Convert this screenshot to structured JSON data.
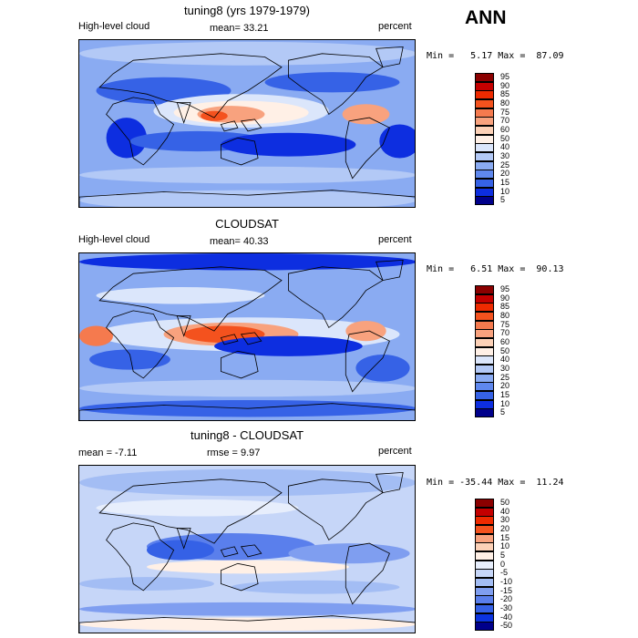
{
  "header": {
    "season": "ANN"
  },
  "panels": [
    {
      "title": "tuning8 (yrs 1979-1979)",
      "left_label": "High-level cloud",
      "mean_label": "mean=  33.21",
      "units": "percent",
      "minmax": "Min =   5.17 Max =  87.09",
      "colorbar_labels": [
        "95",
        "90",
        "85",
        "80",
        "75",
        "70",
        "60",
        "50",
        "40",
        "30",
        "25",
        "20",
        "15",
        "10",
        "5"
      ]
    },
    {
      "title": "CLOUDSAT",
      "left_label": "High-level cloud",
      "mean_label": "mean=  40.33",
      "units": "percent",
      "minmax": "Min =   6.51 Max =  90.13",
      "colorbar_labels": [
        "95",
        "90",
        "85",
        "80",
        "75",
        "70",
        "60",
        "50",
        "40",
        "30",
        "25",
        "20",
        "15",
        "10",
        "5"
      ]
    },
    {
      "title": "tuning8 - CLOUDSAT",
      "left_label": "mean =  -7.11",
      "mean_label": "rmse =   9.97",
      "units": "percent",
      "minmax": "Min = -35.44 Max =  11.24",
      "colorbar_labels": [
        "50",
        "40",
        "30",
        "20",
        "15",
        "10",
        "5",
        "0",
        "-5",
        "-10",
        "-15",
        "-20",
        "-30",
        "-40",
        "-50"
      ]
    }
  ],
  "colors": {
    "abs_scale": [
      "#8b0000",
      "#c40000",
      "#ee2a00",
      "#f4521e",
      "#f57a4e",
      "#f8a27e",
      "#fcd1b7",
      "#fff0e6",
      "#dbe6fb",
      "#b3c9f6",
      "#8aabf2",
      "#5f88ee",
      "#3662e6",
      "#0d2ee0",
      "#00008b"
    ],
    "diff_scale": [
      "#8b0000",
      "#c40000",
      "#ee2a00",
      "#f4521e",
      "#f8a27e",
      "#fcd1b7",
      "#fff0e6",
      "#e7eefc",
      "#c6d6f8",
      "#a3bdf4",
      "#7f9ef0",
      "#5a7fec",
      "#3561e6",
      "#0b33df",
      "#00008b"
    ],
    "coastline": "#000000"
  }
}
